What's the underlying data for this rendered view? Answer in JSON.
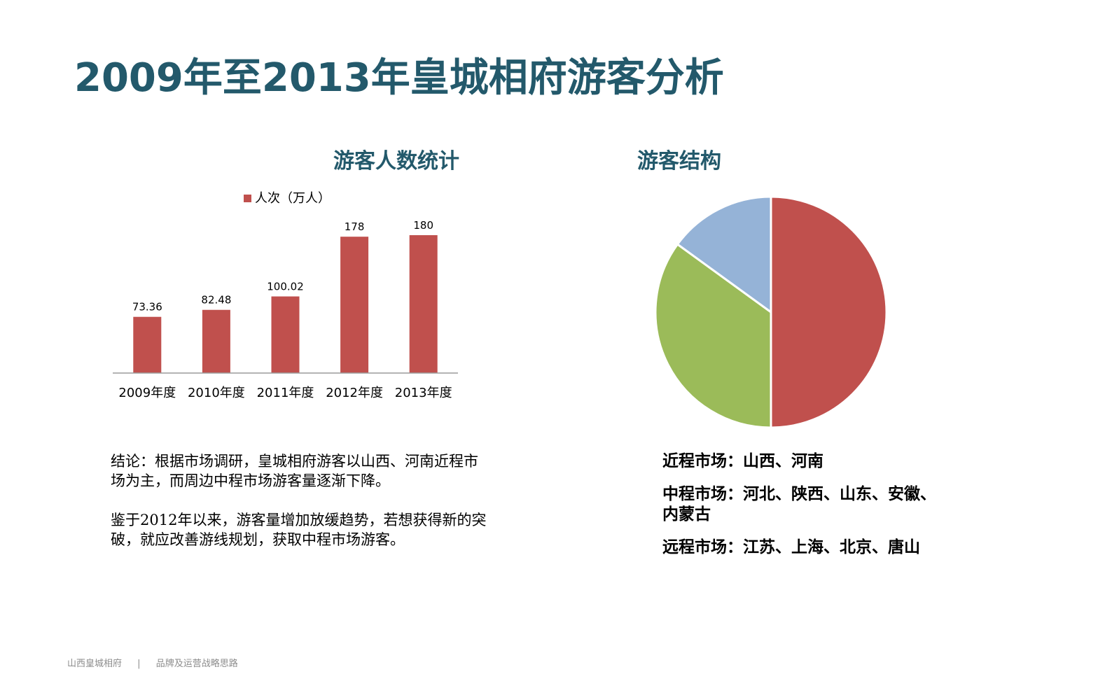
{
  "page": {
    "title": "2009年至2013年皇城相府游客分析",
    "bar_section_title": "游客人数统计",
    "pie_section_title": "游客结构",
    "conclusion": [
      "结论：根据市场调研，皇城相府游客以山西、河南近程市场为主，而周边中程市场游客量逐渐下降。",
      "鉴于2012年以来，游客量增加放缓趋势，若想获得新的突破，就应改善游线规划，获取中程市场游客。"
    ],
    "markets": {
      "near": "近程市场：山西、河南",
      "mid": "中程市场：河北、陕西、山东、安徽、内蒙古",
      "far": "远程市场：江苏、上海、北京、唐山"
    },
    "footer": {
      "left": "山西皇城相府",
      "divider": "|",
      "right": "品牌及运营战略思路"
    }
  },
  "chart_data": [
    {
      "type": "bar",
      "title": "游客人数统计",
      "categories": [
        "2009年度",
        "2010年度",
        "2011年度",
        "2012年度",
        "2013年度"
      ],
      "series": [
        {
          "name": "人次（万人）",
          "values": [
            73.36,
            82.48,
            100.02,
            178,
            180
          ],
          "color": "#c0504d"
        }
      ],
      "data_labels": [
        "73.36",
        "82.48",
        "100.02",
        "178",
        "180"
      ],
      "legend": "top",
      "grid": false
    },
    {
      "type": "pie",
      "title": "游客结构",
      "slices": [
        {
          "value": 50,
          "color": "#c0504d"
        },
        {
          "value": 35,
          "color": "#9bbb59"
        },
        {
          "value": 15,
          "color": "#95b3d7"
        }
      ],
      "legend": "none"
    }
  ]
}
